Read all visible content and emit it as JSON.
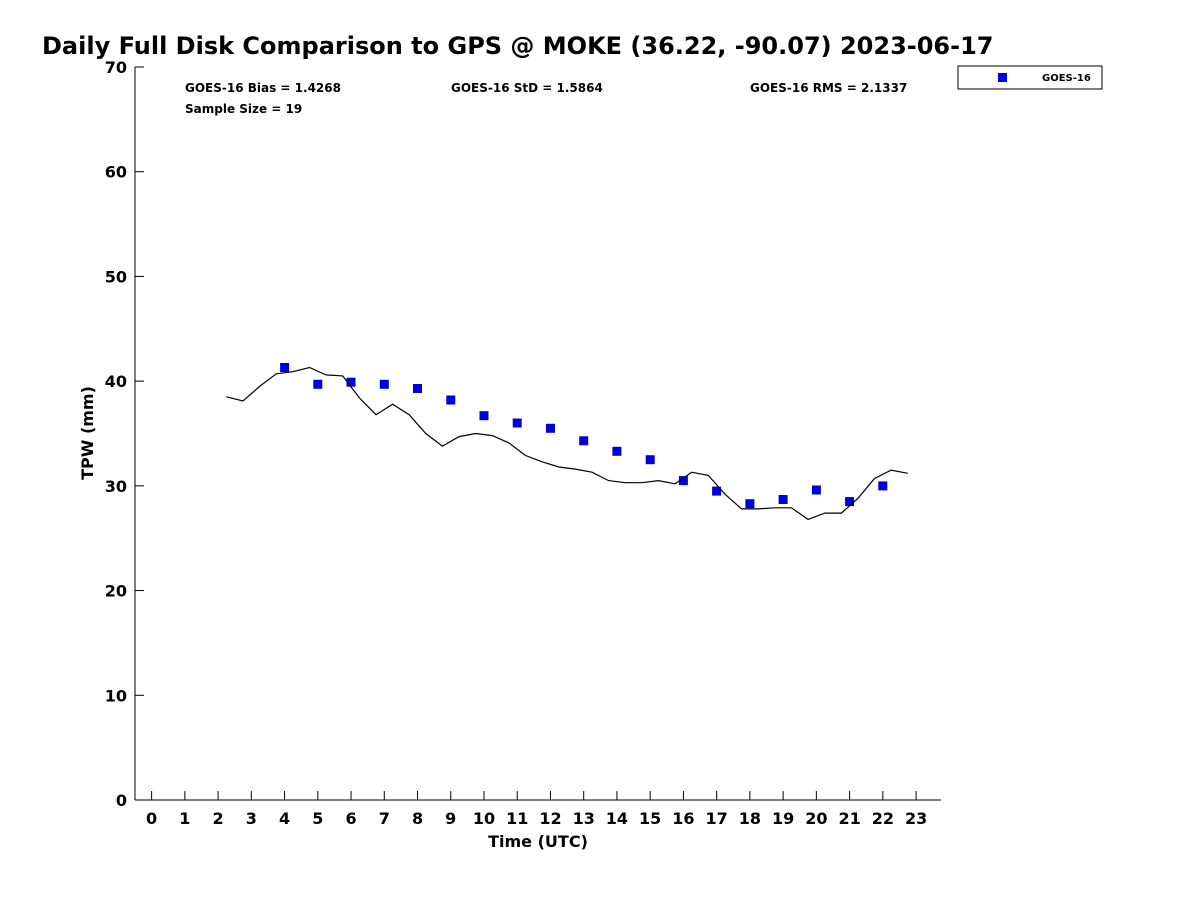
{
  "chart_data": {
    "type": "scatter",
    "title": "Daily Full Disk Comparison to GPS @ MOKE (36.22, -90.07) 2023-06-17",
    "xlabel": "Time (UTC)",
    "ylabel": "TPW (mm)",
    "xlim": [
      -0.5,
      23.75
    ],
    "ylim": [
      0,
      70
    ],
    "x_ticks": [
      "0",
      "1",
      "2",
      "3",
      "4",
      "5",
      "6",
      "7",
      "8",
      "9",
      "10",
      "11",
      "12",
      "13",
      "14",
      "15",
      "16",
      "17",
      "18",
      "19",
      "20",
      "21",
      "22",
      "23"
    ],
    "y_ticks": [
      "0",
      "10",
      "20",
      "30",
      "40",
      "50",
      "60",
      "70"
    ],
    "grid": false,
    "legend_position": "top-right",
    "stats": {
      "bias": "GOES-16 Bias = 1.4268",
      "std": "GOES-16 StD = 1.5864",
      "rms": "GOES-16 RMS = 2.1337",
      "sample_size": "Sample Size = 19"
    },
    "series": [
      {
        "name": "GOES-16",
        "kind": "markers",
        "color": "#0000dd",
        "x": [
          4,
          5,
          6,
          7,
          8,
          9,
          10,
          11,
          12,
          13,
          14,
          15,
          16,
          17,
          18,
          19,
          20,
          21,
          22
        ],
        "y": [
          41.3,
          39.7,
          39.9,
          39.7,
          39.3,
          38.2,
          36.7,
          36.0,
          35.5,
          34.3,
          33.3,
          32.5,
          30.5,
          29.5,
          28.3,
          28.7,
          29.6,
          28.5,
          30.0
        ]
      },
      {
        "kind": "line",
        "color": "#000000",
        "x": [
          2.25,
          2.75,
          3.25,
          3.75,
          4.25,
          4.75,
          5.25,
          5.75,
          6.25,
          6.75,
          7.25,
          7.75,
          8.25,
          8.75,
          9.25,
          9.75,
          10.25,
          10.75,
          11.25,
          11.75,
          12.25,
          12.75,
          13.25,
          13.75,
          14.25,
          14.75,
          15.25,
          15.75,
          16.25,
          16.75,
          17.25,
          17.75,
          18.25,
          18.75,
          19.25,
          19.75,
          20.25,
          20.75,
          21.25,
          21.75,
          22.25,
          22.75
        ],
        "y": [
          38.5,
          38.1,
          39.5,
          40.7,
          40.9,
          41.3,
          40.6,
          40.5,
          38.4,
          36.8,
          37.8,
          36.8,
          35.0,
          33.8,
          34.7,
          35.0,
          34.8,
          34.1,
          32.9,
          32.3,
          31.8,
          31.6,
          31.3,
          30.5,
          30.3,
          30.3,
          30.5,
          30.2,
          31.3,
          31.0,
          29.2,
          27.8,
          27.8,
          27.9,
          27.9,
          26.8,
          27.4,
          27.4,
          28.8,
          30.7,
          31.5,
          31.2
        ]
      }
    ]
  }
}
